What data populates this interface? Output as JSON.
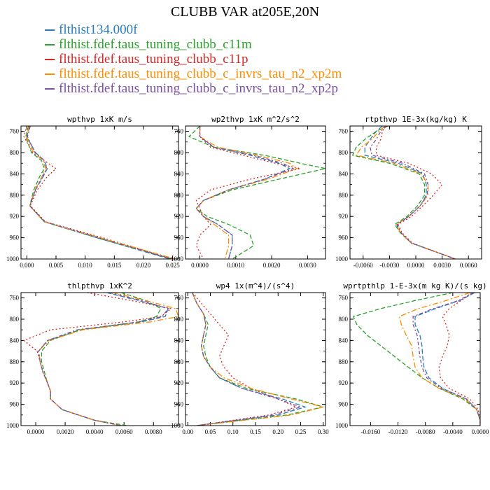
{
  "title": "CLUBB VAR at205E,20N",
  "legend": [
    {
      "label": "flthist134.000f",
      "color": "#2b7bba"
    },
    {
      "label": "flthist.fdef.taus_tuning_clubb_c11m",
      "color": "#2ca02c"
    },
    {
      "label": "flthist.fdef.taus_tuning_clubb_c11p",
      "color": "#d62728"
    },
    {
      "label": "flthist.fdef.taus_tuning_clubb_c_invrs_tau_n2_xp2m",
      "color": "#ff8c00"
    },
    {
      "label": "flthist.fdef.taus_tuning_clubb_c_invrs_tau_n2_xp2p",
      "color": "#7b4fa2"
    }
  ],
  "series_colors": [
    "#2b7bba",
    "#2ca02c",
    "#d62728",
    "#ff8c00",
    "#7b4fa2"
  ],
  "chart_data": [
    {
      "type": "line",
      "title": "wpthvp  1xK m/s",
      "xlim": [
        -0.001,
        0.026
      ],
      "ylim": [
        1000,
        750
      ],
      "y_inverted": true,
      "xticks": [
        0.0,
        0.005,
        0.01,
        0.015,
        0.02,
        0.025
      ],
      "xtick_labels": [
        "0.000",
        "0.005",
        "0.010",
        "0.015",
        "0.020",
        "0.025"
      ],
      "yticks": [
        760,
        800,
        840,
        880,
        920,
        960,
        1000
      ],
      "ytick_labels": [
        "760",
        "800",
        "840",
        "880",
        "920",
        "960",
        "1000"
      ],
      "y": [
        750,
        770,
        800,
        815,
        830,
        845,
        870,
        900,
        930,
        960,
        1000
      ],
      "series": [
        {
          "values": [
            0.0005,
            0.0,
            0.0015,
            0.003,
            0.0035,
            0.0028,
            0.0015,
            0.0005,
            0.003,
            0.012,
            0.0245
          ]
        },
        {
          "values": [
            0.0003,
            -0.0002,
            0.0008,
            0.0025,
            0.003,
            0.0022,
            0.0012,
            0.0005,
            0.003,
            0.012,
            0.025
          ]
        },
        {
          "values": [
            0.0,
            -0.0005,
            0.001,
            0.003,
            0.005,
            0.0035,
            0.0018,
            0.0006,
            0.0032,
            0.013,
            0.025
          ]
        },
        {
          "values": [
            0.0004,
            -0.0001,
            0.0012,
            0.0028,
            0.0032,
            0.0026,
            0.0014,
            0.0005,
            0.003,
            0.0125,
            0.0255
          ]
        },
        {
          "values": [
            0.0006,
            0.0001,
            0.0014,
            0.003,
            0.0034,
            0.0027,
            0.0015,
            0.0005,
            0.0031,
            0.0122,
            0.0248
          ]
        }
      ]
    },
    {
      "type": "line",
      "title": "wp2thvp  1xK m^2/s^2",
      "xlim": [
        -0.0004,
        0.0035
      ],
      "ylim": [
        1000,
        750
      ],
      "y_inverted": true,
      "xticks": [
        0.0,
        0.001,
        0.002,
        0.003
      ],
      "xtick_labels": [
        "0.0000",
        "0.0010",
        "0.0020",
        "0.0030"
      ],
      "yticks": [
        760,
        800,
        840,
        880,
        920,
        960,
        1000
      ],
      "ytick_labels": [
        "760",
        "800",
        "840",
        "880",
        "920",
        "960",
        "1000"
      ],
      "y": [
        750,
        770,
        790,
        805,
        820,
        830,
        850,
        870,
        890,
        905,
        920,
        935,
        955,
        975,
        1000
      ],
      "series": [
        {
          "values": [
            0.0,
            0.0,
            0.0004,
            0.0014,
            0.0022,
            0.0025,
            0.0018,
            0.0008,
            0.0001,
            -0.0001,
            0.0001,
            0.0005,
            0.0009,
            0.0009,
            0.0008
          ]
        },
        {
          "values": [
            0.0,
            -0.0003,
            0.0004,
            0.0018,
            0.0028,
            0.0035,
            0.0022,
            0.0009,
            0.0001,
            -0.0001,
            0.0002,
            0.0008,
            0.0014,
            0.0015,
            0.0009
          ]
        },
        {
          "values": [
            0.0,
            0.0,
            0.0003,
            0.0012,
            0.0021,
            0.0028,
            0.0014,
            0.0003,
            -0.0001,
            0.0,
            0.0001,
            0.0003,
            0.0,
            -0.0001,
            0.0001
          ]
        },
        {
          "values": [
            0.0,
            0.0,
            0.0005,
            0.0016,
            0.0025,
            0.0027,
            0.0019,
            0.0008,
            0.0001,
            -0.0001,
            0.0001,
            0.0004,
            0.0008,
            0.0008,
            0.0007
          ]
        },
        {
          "values": [
            0.0,
            0.0,
            0.0004,
            0.0015,
            0.0023,
            0.0026,
            0.0018,
            0.0008,
            0.0001,
            -0.0001,
            0.0001,
            0.0005,
            0.0009,
            0.0009,
            0.0008
          ]
        }
      ]
    },
    {
      "type": "line",
      "title": "rtpthvp  1E-3x(kg/kg) K",
      "xlim": [
        -0.0075,
        0.0075
      ],
      "ylim": [
        1000,
        750
      ],
      "y_inverted": true,
      "xticks": [
        -0.006,
        -0.003,
        0.0,
        0.003,
        0.006
      ],
      "xtick_labels": [
        "-0.0060",
        "-0.0030",
        "0.0000",
        "0.0030",
        "0.0060"
      ],
      "yticks": [
        760,
        800,
        840,
        880,
        920,
        960,
        1000
      ],
      "ytick_labels": [
        "760",
        "800",
        "840",
        "880",
        "920",
        "960",
        "1000"
      ],
      "y": [
        750,
        760,
        775,
        790,
        805,
        820,
        840,
        860,
        880,
        900,
        920,
        935,
        950,
        970,
        1000
      ],
      "series": [
        {
          "values": [
            -0.0038,
            -0.0045,
            -0.0052,
            -0.0058,
            -0.0058,
            -0.002,
            0.0008,
            0.0012,
            0.0012,
            0.0005,
            -0.0008,
            -0.0022,
            -0.0018,
            -0.0005,
            0.0045
          ]
        },
        {
          "values": [
            -0.0032,
            -0.0045,
            -0.0058,
            -0.0068,
            -0.0072,
            -0.003,
            0.0004,
            0.001,
            0.001,
            0.0002,
            -0.001,
            -0.0024,
            -0.0018,
            -0.0005,
            0.0045
          ]
        },
        {
          "values": [
            -0.0035,
            -0.0038,
            -0.004,
            -0.0045,
            -0.0045,
            -0.0008,
            0.0018,
            0.003,
            0.002,
            0.0008,
            -0.0005,
            -0.002,
            -0.0016,
            -0.0004,
            0.0045
          ]
        },
        {
          "values": [
            -0.0035,
            -0.0042,
            -0.005,
            -0.0062,
            -0.0068,
            -0.0025,
            0.0006,
            0.0014,
            0.0014,
            0.0005,
            -0.0008,
            -0.0022,
            -0.0018,
            -0.0005,
            0.0045
          ]
        },
        {
          "values": [
            -0.0033,
            -0.004,
            -0.0045,
            -0.0052,
            -0.005,
            -0.0015,
            0.001,
            0.0014,
            0.0013,
            0.0005,
            -0.0008,
            -0.0021,
            -0.0017,
            -0.0005,
            0.0045
          ]
        }
      ]
    },
    {
      "type": "line",
      "title": "thlpthvp  1xK^2",
      "xlim": [
        -0.001,
        0.0097
      ],
      "ylim": [
        1000,
        750
      ],
      "y_inverted": true,
      "xticks": [
        0.0,
        0.002,
        0.004,
        0.006,
        0.008
      ],
      "xtick_labels": [
        "0.0000",
        "0.0020",
        "0.0040",
        "0.0060",
        "0.0080"
      ],
      "yticks": [
        760,
        800,
        840,
        880,
        920,
        960,
        1000
      ],
      "ytick_labels": [
        "760",
        "800",
        "840",
        "880",
        "920",
        "960",
        "1000"
      ],
      "y": [
        750,
        765,
        780,
        795,
        805,
        820,
        840,
        860,
        880,
        900,
        920,
        935,
        950,
        970,
        990,
        1000
      ],
      "series": [
        {
          "values": [
            0.0048,
            0.007,
            0.009,
            0.0088,
            0.0072,
            0.003,
            0.0008,
            0.0002,
            0.0003,
            0.0005,
            0.0008,
            0.001,
            0.001,
            0.0018,
            0.004,
            0.0058
          ]
        },
        {
          "values": [
            0.0058,
            0.0075,
            0.0085,
            0.0082,
            0.007,
            0.003,
            0.001,
            0.0004,
            0.0004,
            0.0006,
            0.0008,
            0.001,
            0.001,
            0.0018,
            0.004,
            0.0062
          ]
        },
        {
          "values": [
            0.0035,
            0.0065,
            0.0092,
            0.0085,
            0.006,
            0.001,
            -0.0008,
            0.0001,
            0.0003,
            0.0005,
            0.0008,
            0.001,
            0.001,
            0.0018,
            0.004,
            0.0058
          ]
        },
        {
          "values": [
            0.0052,
            0.0075,
            0.0095,
            0.0097,
            0.0078,
            0.0032,
            0.0009,
            0.0002,
            0.0003,
            0.0005,
            0.0008,
            0.001,
            0.001,
            0.0018,
            0.004,
            0.0058
          ]
        },
        {
          "values": [
            0.005,
            0.0072,
            0.009,
            0.0086,
            0.007,
            0.0028,
            0.0008,
            0.0002,
            0.0003,
            0.0005,
            0.0008,
            0.001,
            0.001,
            0.0018,
            0.004,
            0.0058
          ]
        }
      ]
    },
    {
      "type": "line",
      "title": "wp4  1x(m^4)/(s^4)",
      "xlim": [
        -0.005,
        0.305
      ],
      "ylim": [
        1000,
        750
      ],
      "y_inverted": true,
      "xticks": [
        0.0,
        0.05,
        0.1,
        0.15,
        0.2,
        0.25,
        0.3
      ],
      "xtick_labels": [
        "0.00",
        "0.05",
        "0.10",
        "0.15",
        "0.20",
        "0.25",
        "0.30"
      ],
      "yticks": [
        760,
        800,
        840,
        880,
        920,
        960,
        1000
      ],
      "ytick_labels": [
        "760",
        "800",
        "840",
        "880",
        "920",
        "960",
        "1000"
      ],
      "y": [
        750,
        770,
        790,
        810,
        830,
        850,
        870,
        890,
        910,
        930,
        950,
        965,
        980,
        1000
      ],
      "series": [
        {
          "values": [
            0.01,
            0.02,
            0.035,
            0.04,
            0.035,
            0.03,
            0.035,
            0.05,
            0.07,
            0.12,
            0.21,
            0.26,
            0.2,
            0.02
          ]
        },
        {
          "values": [
            0.01,
            0.02,
            0.035,
            0.045,
            0.04,
            0.035,
            0.04,
            0.05,
            0.07,
            0.13,
            0.24,
            0.3,
            0.22,
            0.02
          ]
        },
        {
          "values": [
            0.01,
            0.03,
            0.05,
            0.07,
            0.09,
            0.08,
            0.07,
            0.08,
            0.1,
            0.14,
            0.2,
            0.24,
            0.18,
            0.02
          ]
        },
        {
          "values": [
            0.01,
            0.02,
            0.035,
            0.04,
            0.035,
            0.03,
            0.035,
            0.05,
            0.08,
            0.14,
            0.23,
            0.3,
            0.23,
            0.02
          ]
        },
        {
          "values": [
            0.01,
            0.02,
            0.035,
            0.04,
            0.035,
            0.03,
            0.035,
            0.05,
            0.07,
            0.12,
            0.2,
            0.25,
            0.19,
            0.02
          ]
        }
      ]
    },
    {
      "type": "line",
      "title": "wprtpthlp  1-E-3x(m kg K)/(s kg)",
      "xlim": [
        -0.019,
        0.0
      ],
      "ylim": [
        1000,
        750
      ],
      "y_inverted": true,
      "xticks": [
        -0.016,
        -0.012,
        -0.008,
        -0.004,
        0.0
      ],
      "xtick_labels": [
        "-0.0160",
        "-0.0120",
        "-0.0080",
        "-0.0040",
        "0.0000"
      ],
      "yticks": [
        760,
        800,
        840,
        880,
        920,
        960,
        1000
      ],
      "ytick_labels": [
        "760",
        "800",
        "840",
        "880",
        "920",
        "960",
        "1000"
      ],
      "y": [
        750,
        765,
        780,
        795,
        810,
        830,
        850,
        870,
        890,
        910,
        930,
        950,
        970,
        990,
        1000
      ],
      "series": [
        {
          "values": [
            -0.0008,
            -0.003,
            -0.0065,
            -0.0095,
            -0.0095,
            -0.0088,
            -0.0085,
            -0.0084,
            -0.0082,
            -0.0075,
            -0.0055,
            -0.002,
            -0.0005,
            0.0,
            0.0
          ]
        },
        {
          "values": [
            -0.004,
            -0.0095,
            -0.0145,
            -0.0185,
            -0.018,
            -0.0165,
            -0.0145,
            -0.0125,
            -0.0105,
            -0.0085,
            -0.006,
            -0.0025,
            -0.0005,
            0.0,
            0.0
          ]
        },
        {
          "values": [
            -0.0012,
            -0.0028,
            -0.0045,
            -0.0055,
            -0.005,
            -0.0045,
            -0.0048,
            -0.0055,
            -0.006,
            -0.0058,
            -0.0045,
            -0.0015,
            -0.0003,
            0.0,
            0.0
          ]
        },
        {
          "values": [
            -0.0015,
            -0.005,
            -0.009,
            -0.0118,
            -0.0115,
            -0.0108,
            -0.01,
            -0.0098,
            -0.0095,
            -0.0085,
            -0.006,
            -0.0022,
            -0.0005,
            0.0,
            0.0
          ]
        },
        {
          "values": [
            -0.001,
            -0.0032,
            -0.0068,
            -0.0098,
            -0.0098,
            -0.0092,
            -0.009,
            -0.0088,
            -0.0085,
            -0.0078,
            -0.0057,
            -0.002,
            -0.0005,
            0.0,
            0.0
          ]
        }
      ]
    }
  ]
}
